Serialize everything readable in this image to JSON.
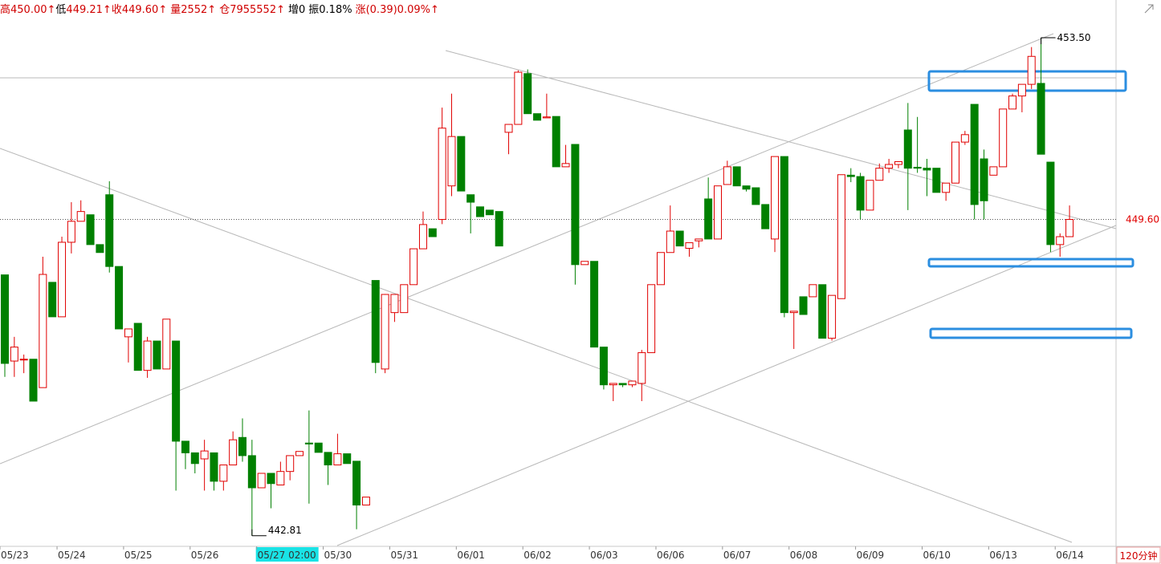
{
  "chart_data": {
    "type": "candlestick",
    "header": [
      {
        "text": "高",
        "color": "#d00000"
      },
      {
        "text": "450.00↑",
        "color": "#d00000"
      },
      {
        "text": "低",
        "color": "#000000"
      },
      {
        "text": "449.21↑",
        "color": "#d00000"
      },
      {
        "text": "收",
        "color": "#d00000"
      },
      {
        "text": "449.60↑",
        "color": "#d00000"
      },
      {
        "text": "量2552↑",
        "color": "#d00000"
      },
      {
        "text": "仓7955552↑",
        "color": "#d00000"
      },
      {
        "text": "增0",
        "color": "#000000"
      },
      {
        "text": "振0.18%",
        "color": "#000000"
      },
      {
        "text": "涨(0.39)0.09%↑",
        "color": "#d00000"
      }
    ],
    "period": "120分钟",
    "up_color": "#e00000",
    "down_color": "#008000",
    "ylim": [
      442.6,
      454.31
    ],
    "cursor": 27,
    "categories": [
      "05/23",
      null,
      null,
      null,
      null,
      null,
      "05/24",
      null,
      null,
      null,
      null,
      null,
      null,
      "05/25",
      null,
      null,
      null,
      null,
      null,
      null,
      "05/26",
      null,
      null,
      null,
      null,
      null,
      null,
      "05/27 02:00",
      null,
      null,
      null,
      null,
      null,
      null,
      "05/30",
      null,
      null,
      null,
      null,
      null,
      null,
      "05/31",
      null,
      null,
      null,
      null,
      null,
      null,
      "06/01",
      null,
      null,
      null,
      null,
      null,
      null,
      "06/02",
      null,
      null,
      null,
      null,
      null,
      null,
      "06/03",
      null,
      null,
      null,
      null,
      null,
      null,
      "06/06",
      null,
      null,
      null,
      null,
      null,
      null,
      "06/07",
      null,
      null,
      null,
      null,
      null,
      null,
      "06/08",
      null,
      null,
      null,
      null,
      null,
      null,
      "06/09",
      null,
      null,
      null,
      null,
      null,
      null,
      "06/10",
      null,
      null,
      null,
      null,
      null,
      null,
      "06/13",
      null,
      null,
      null,
      null,
      null,
      null,
      "06/14",
      null
    ],
    "open": [
      448.41,
      446.56,
      446.6,
      446.6,
      445.99,
      448.25,
      447.51,
      449.11,
      449.56,
      449.7,
      449.06,
      450.13,
      448.59,
      447.08,
      447.37,
      446.36,
      446.99,
      446.39,
      446.99,
      444.84,
      444.59,
      444.46,
      444.59,
      443.98,
      444.33,
      444.92,
      444.53,
      443.84,
      444.15,
      443.9,
      444.19,
      444.53,
      444.8,
      444.8,
      444.6,
      444.33,
      444.57,
      444.41,
      443.47,
      448.29,
      446.39,
      447.6,
      447.6,
      448.2,
      448.97,
      449.4,
      449.6,
      450.32,
      451.38,
      450.13,
      449.87,
      449.8,
      449.77,
      451.47,
      451.64,
      452.73,
      451.87,
      451.78,
      451.81,
      450.73,
      451.21,
      448.63,
      448.7,
      446.86,
      446.05,
      446.08,
      446.05,
      446.08,
      446.74,
      448.2,
      448.89,
      449.35,
      448.98,
      449.14,
      450.04,
      449.18,
      450.35,
      450.73,
      450.32,
      450.28,
      449.92,
      449.18,
      450.95,
      447.6,
      447.94,
      447.94,
      448.2,
      447.05,
      447.9,
      450.55,
      450.52,
      449.8,
      450.44,
      450.7,
      450.78,
      451.52,
      450.72,
      450.7,
      450.7,
      450.18,
      450.38,
      451.26,
      452.07,
      450.9,
      450.55,
      450.73,
      451.97,
      452.25,
      452.5,
      452.52,
      450.83,
      449.06,
      449.23
    ],
    "high": [
      448.41,
      447.08,
      446.7,
      446.6,
      448.8,
      448.25,
      449.23,
      449.97,
      450.01,
      449.7,
      449.06,
      450.42,
      448.59,
      447.25,
      447.37,
      447.08,
      446.99,
      447.46,
      446.99,
      444.84,
      444.59,
      444.87,
      444.59,
      444.33,
      445.05,
      445.33,
      444.87,
      444.15,
      444.15,
      444.4,
      444.53,
      444.62,
      445.5,
      444.8,
      444.6,
      445.0,
      444.57,
      444.41,
      443.64,
      448.29,
      448.0,
      447.99,
      448.2,
      448.97,
      449.77,
      449.4,
      452.0,
      452.3,
      451.38,
      450.13,
      449.87,
      449.8,
      449.77,
      451.64,
      452.8,
      452.82,
      451.87,
      452.3,
      451.81,
      451.2,
      451.21,
      448.7,
      448.7,
      446.86,
      446.08,
      446.08,
      446.13,
      446.8,
      448.2,
      448.89,
      449.9,
      449.35,
      449.1,
      449.18,
      450.5,
      450.32,
      450.86,
      450.73,
      450.32,
      450.28,
      449.92,
      450.95,
      450.95,
      447.63,
      447.94,
      448.2,
      448.2,
      447.97,
      450.56,
      450.7,
      450.6,
      450.44,
      450.8,
      450.9,
      450.84,
      452.1,
      451.8,
      450.9,
      450.7,
      450.38,
      451.26,
      451.5,
      452.07,
      451.1,
      450.73,
      451.97,
      452.3,
      452.5,
      453.3,
      453.5,
      450.83,
      449.3,
      449.9
    ],
    "low": [
      446.22,
      446.22,
      446.3,
      445.7,
      445.99,
      447.51,
      447.51,
      448.87,
      449.56,
      449.06,
      448.89,
      448.46,
      447.25,
      446.53,
      446.36,
      446.2,
      446.39,
      446.39,
      443.78,
      444.24,
      444.15,
      443.78,
      443.78,
      443.78,
      444.33,
      444.4,
      442.81,
      443.84,
      443.4,
      443.9,
      444.0,
      444.53,
      443.5,
      444.6,
      443.9,
      444.33,
      444.36,
      442.95,
      443.47,
      446.3,
      446.3,
      447.4,
      447.6,
      448.2,
      448.97,
      449.23,
      449.5,
      450.1,
      450.21,
      449.3,
      449.66,
      449.7,
      449.03,
      451.0,
      451.64,
      451.87,
      451.73,
      451.78,
      450.73,
      450.73,
      448.2,
      448.63,
      446.86,
      445.95,
      445.7,
      446.0,
      446.0,
      445.7,
      446.74,
      448.2,
      448.89,
      449.03,
      448.8,
      449.0,
      449.18,
      449.18,
      450.35,
      450.32,
      450.2,
      449.92,
      449.4,
      448.9,
      447.5,
      446.82,
      447.56,
      447.94,
      447.05,
      447.0,
      447.9,
      450.4,
      449.6,
      449.8,
      450.44,
      450.6,
      450.7,
      449.8,
      450.6,
      450.1,
      450.18,
      450.0,
      450.38,
      451.2,
      449.6,
      449.6,
      450.55,
      450.73,
      451.97,
      451.9,
      452.4,
      451.0,
      448.9,
      448.8,
      449.23
    ],
    "close": [
      446.51,
      446.86,
      446.6,
      445.7,
      448.42,
      447.51,
      449.11,
      449.56,
      449.77,
      449.06,
      448.89,
      448.59,
      447.25,
      447.25,
      446.36,
      446.99,
      446.39,
      447.46,
      444.84,
      444.59,
      444.36,
      444.63,
      443.98,
      444.33,
      444.87,
      444.53,
      443.84,
      444.15,
      443.93,
      444.19,
      444.53,
      444.62,
      444.78,
      444.6,
      444.33,
      444.57,
      444.36,
      443.47,
      443.64,
      446.53,
      447.99,
      447.99,
      448.2,
      448.97,
      449.49,
      449.23,
      451.56,
      451.38,
      450.21,
      449.97,
      449.66,
      449.7,
      449.03,
      451.64,
      452.76,
      451.87,
      451.73,
      451.8,
      450.73,
      450.8,
      448.63,
      448.7,
      446.86,
      446.05,
      446.08,
      446.05,
      446.13,
      446.74,
      448.2,
      448.89,
      449.35,
      449.03,
      449.1,
      449.18,
      449.18,
      450.32,
      450.73,
      450.32,
      450.25,
      449.92,
      449.4,
      450.95,
      447.6,
      447.63,
      447.56,
      448.2,
      447.05,
      447.97,
      450.56,
      450.52,
      449.8,
      450.44,
      450.7,
      450.78,
      450.84,
      450.7,
      450.7,
      450.66,
      450.18,
      450.38,
      451.26,
      451.42,
      449.92,
      450.0,
      450.73,
      451.97,
      452.25,
      452.5,
      453.1,
      451.0,
      449.06,
      449.23,
      449.6
    ],
    "annotations": [
      {
        "index": 109,
        "value": 453.5,
        "label": "453.50"
      },
      {
        "index": 26,
        "value": 442.81,
        "label": "442.81"
      }
    ],
    "last": {
      "value": 449.6,
      "label": "449.60"
    }
  }
}
